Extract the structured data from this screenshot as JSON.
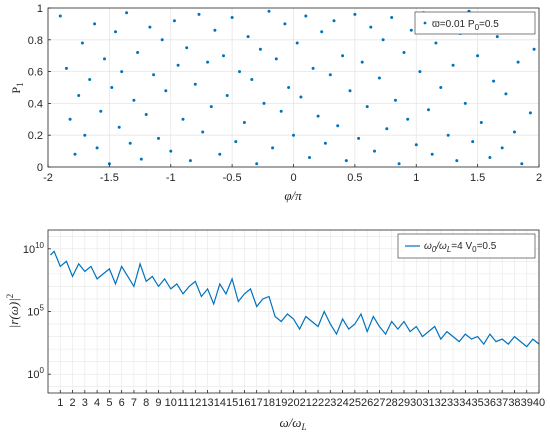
{
  "colors": {
    "data": "#0072BD",
    "grid": "#e6e6e6",
    "axis": "#262626"
  },
  "chart_data": [
    {
      "type": "scatter",
      "xlabel": "φ/π",
      "ylabel": "P",
      "ylabel_sub": "1",
      "xlim": [
        -2,
        2
      ],
      "ylim": [
        0,
        1
      ],
      "xticks": [
        -2,
        -1.5,
        -1,
        -0.5,
        0,
        0.5,
        1,
        1.5,
        2
      ],
      "xtick_labels": [
        "-2",
        "-1.5",
        "-1",
        "-0.5",
        "0",
        "0.5",
        "1",
        "1.5",
        "2"
      ],
      "yticks": [
        0,
        0.2,
        0.4,
        0.6,
        0.8,
        1
      ],
      "ytick_labels": [
        "0",
        "0.2",
        "0.4",
        "0.6",
        "0.8",
        "1"
      ],
      "grid": true,
      "legend": {
        "position": "top-right",
        "parts": [
          "ϖ=0.01 P",
          "0",
          "=0.5"
        ]
      },
      "series": [
        {
          "points": [
            [
              -1.9,
              0.95
            ],
            [
              -1.85,
              0.62
            ],
            [
              -1.82,
              0.3
            ],
            [
              -1.78,
              0.08
            ],
            [
              -1.75,
              0.45
            ],
            [
              -1.72,
              0.78
            ],
            [
              -1.7,
              0.2
            ],
            [
              -1.66,
              0.55
            ],
            [
              -1.62,
              0.9
            ],
            [
              -1.6,
              0.12
            ],
            [
              -1.57,
              0.35
            ],
            [
              -1.54,
              0.68
            ],
            [
              -1.5,
              0.02
            ],
            [
              -1.48,
              0.5
            ],
            [
              -1.45,
              0.85
            ],
            [
              -1.42,
              0.25
            ],
            [
              -1.4,
              0.6
            ],
            [
              -1.36,
              0.97
            ],
            [
              -1.33,
              0.15
            ],
            [
              -1.3,
              0.42
            ],
            [
              -1.27,
              0.72
            ],
            [
              -1.24,
              0.05
            ],
            [
              -1.2,
              0.33
            ],
            [
              -1.17,
              0.88
            ],
            [
              -1.14,
              0.58
            ],
            [
              -1.1,
              0.18
            ],
            [
              -1.07,
              0.8
            ],
            [
              -1.04,
              0.48
            ],
            [
              -1.0,
              0.1
            ],
            [
              -0.97,
              0.92
            ],
            [
              -0.94,
              0.64
            ],
            [
              -0.9,
              0.3
            ],
            [
              -0.87,
              0.75
            ],
            [
              -0.84,
              0.04
            ],
            [
              -0.8,
              0.52
            ],
            [
              -0.77,
              0.96
            ],
            [
              -0.74,
              0.22
            ],
            [
              -0.7,
              0.66
            ],
            [
              -0.67,
              0.38
            ],
            [
              -0.64,
              0.86
            ],
            [
              -0.6,
              0.08
            ],
            [
              -0.57,
              0.7
            ],
            [
              -0.54,
              0.45
            ],
            [
              -0.5,
              0.94
            ],
            [
              -0.47,
              0.16
            ],
            [
              -0.44,
              0.6
            ],
            [
              -0.4,
              0.28
            ],
            [
              -0.37,
              0.82
            ],
            [
              -0.34,
              0.55
            ],
            [
              -0.3,
              0.02
            ],
            [
              -0.27,
              0.74
            ],
            [
              -0.24,
              0.4
            ],
            [
              -0.2,
              0.98
            ],
            [
              -0.17,
              0.12
            ],
            [
              -0.14,
              0.68
            ],
            [
              -0.1,
              0.35
            ],
            [
              -0.07,
              0.9
            ],
            [
              -0.04,
              0.5
            ],
            [
              0.0,
              0.2
            ],
            [
              0.03,
              0.78
            ],
            [
              0.06,
              0.44
            ],
            [
              0.1,
              0.95
            ],
            [
              0.13,
              0.06
            ],
            [
              0.16,
              0.62
            ],
            [
              0.2,
              0.32
            ],
            [
              0.23,
              0.85
            ],
            [
              0.26,
              0.15
            ],
            [
              0.3,
              0.58
            ],
            [
              0.33,
              0.92
            ],
            [
              0.36,
              0.26
            ],
            [
              0.4,
              0.7
            ],
            [
              0.43,
              0.04
            ],
            [
              0.46,
              0.48
            ],
            [
              0.5,
              0.96
            ],
            [
              0.53,
              0.18
            ],
            [
              0.56,
              0.66
            ],
            [
              0.6,
              0.38
            ],
            [
              0.63,
              0.88
            ],
            [
              0.66,
              0.1
            ],
            [
              0.7,
              0.56
            ],
            [
              0.73,
              0.8
            ],
            [
              0.76,
              0.24
            ],
            [
              0.8,
              0.94
            ],
            [
              0.83,
              0.42
            ],
            [
              0.86,
              0.02
            ],
            [
              0.9,
              0.72
            ],
            [
              0.93,
              0.3
            ],
            [
              0.96,
              0.86
            ],
            [
              1.0,
              0.14
            ],
            [
              1.03,
              0.6
            ],
            [
              1.06,
              0.97
            ],
            [
              1.1,
              0.36
            ],
            [
              1.13,
              0.08
            ],
            [
              1.16,
              0.78
            ],
            [
              1.2,
              0.5
            ],
            [
              1.23,
              0.9
            ],
            [
              1.26,
              0.2
            ],
            [
              1.3,
              0.64
            ],
            [
              1.33,
              0.04
            ],
            [
              1.36,
              0.84
            ],
            [
              1.4,
              0.4
            ],
            [
              1.43,
              0.98
            ],
            [
              1.46,
              0.16
            ],
            [
              1.5,
              0.7
            ],
            [
              1.53,
              0.28
            ],
            [
              1.56,
              0.92
            ],
            [
              1.6,
              0.06
            ],
            [
              1.63,
              0.54
            ],
            [
              1.66,
              0.82
            ],
            [
              1.7,
              0.12
            ],
            [
              1.73,
              0.46
            ],
            [
              1.76,
              0.96
            ],
            [
              1.8,
              0.22
            ],
            [
              1.83,
              0.66
            ],
            [
              1.86,
              0.02
            ],
            [
              1.9,
              0.88
            ],
            [
              1.93,
              0.34
            ],
            [
              1.96,
              0.74
            ]
          ]
        }
      ]
    },
    {
      "type": "line",
      "xlabel": "ω/ω",
      "xlabel_sub": "L",
      "ylabel": "|r(ω)|",
      "ylabel_sup": "2",
      "xlim": [
        0,
        40
      ],
      "yscale": "log",
      "ylim_exp": [
        -1.5,
        11.5
      ],
      "xticks": [
        1,
        2,
        3,
        4,
        5,
        6,
        7,
        8,
        9,
        10,
        11,
        12,
        13,
        14,
        15,
        16,
        17,
        18,
        19,
        20,
        21,
        22,
        23,
        24,
        25,
        26,
        27,
        28,
        29,
        30,
        31,
        32,
        33,
        34,
        35,
        36,
        37,
        38,
        39,
        40
      ],
      "ytick_exponents": [
        0,
        5,
        10
      ],
      "ytick_base": "10",
      "grid": true,
      "legend": {
        "position": "top-right",
        "parts": [
          "ω",
          "0",
          "/ω",
          "L",
          "=4 V",
          "0",
          "=0.5"
        ]
      },
      "series": [
        {
          "x": [
            0.2,
            0.5,
            1,
            1.5,
            2,
            2.5,
            3,
            3.5,
            4,
            4.5,
            5,
            5.5,
            6,
            6.5,
            7,
            7.5,
            8,
            8.5,
            9,
            9.5,
            10,
            10.5,
            11,
            11.5,
            12,
            12.5,
            13,
            13.5,
            14,
            14.5,
            15,
            15.5,
            16,
            16.5,
            17,
            17.5,
            18,
            18.5,
            19,
            19.5,
            20,
            20.5,
            21,
            21.5,
            22,
            22.5,
            23,
            23.5,
            24,
            24.5,
            25,
            25.5,
            26,
            26.5,
            27,
            27.5,
            28,
            28.5,
            29,
            29.5,
            30,
            30.5,
            31,
            31.5,
            32,
            32.5,
            33,
            33.5,
            34,
            34.5,
            35,
            35.5,
            36,
            36.5,
            37,
            37.5,
            38,
            38.5,
            39,
            39.5,
            40
          ],
          "y_exp": [
            9.5,
            9.8,
            8.6,
            9.0,
            7.8,
            8.8,
            8.2,
            8.6,
            7.6,
            8.0,
            8.4,
            7.2,
            8.6,
            7.8,
            7.0,
            8.8,
            7.4,
            7.8,
            7.0,
            7.6,
            6.8,
            7.2,
            6.4,
            7.0,
            7.4,
            6.2,
            6.8,
            5.6,
            7.2,
            6.4,
            7.6,
            5.8,
            6.4,
            6.8,
            5.4,
            6.0,
            6.2,
            4.6,
            4.2,
            4.8,
            4.4,
            3.6,
            4.6,
            4.2,
            3.8,
            5.0,
            4.0,
            3.2,
            4.4,
            3.6,
            4.0,
            4.8,
            3.4,
            4.6,
            3.8,
            3.2,
            4.2,
            3.6,
            4.2,
            3.4,
            3.8,
            3.0,
            3.4,
            3.8,
            2.8,
            3.4,
            3.0,
            2.6,
            3.2,
            2.8,
            3.0,
            2.4,
            3.2,
            2.6,
            2.8,
            2.4,
            3.0,
            2.6,
            2.2,
            2.8,
            2.4
          ]
        }
      ]
    }
  ]
}
